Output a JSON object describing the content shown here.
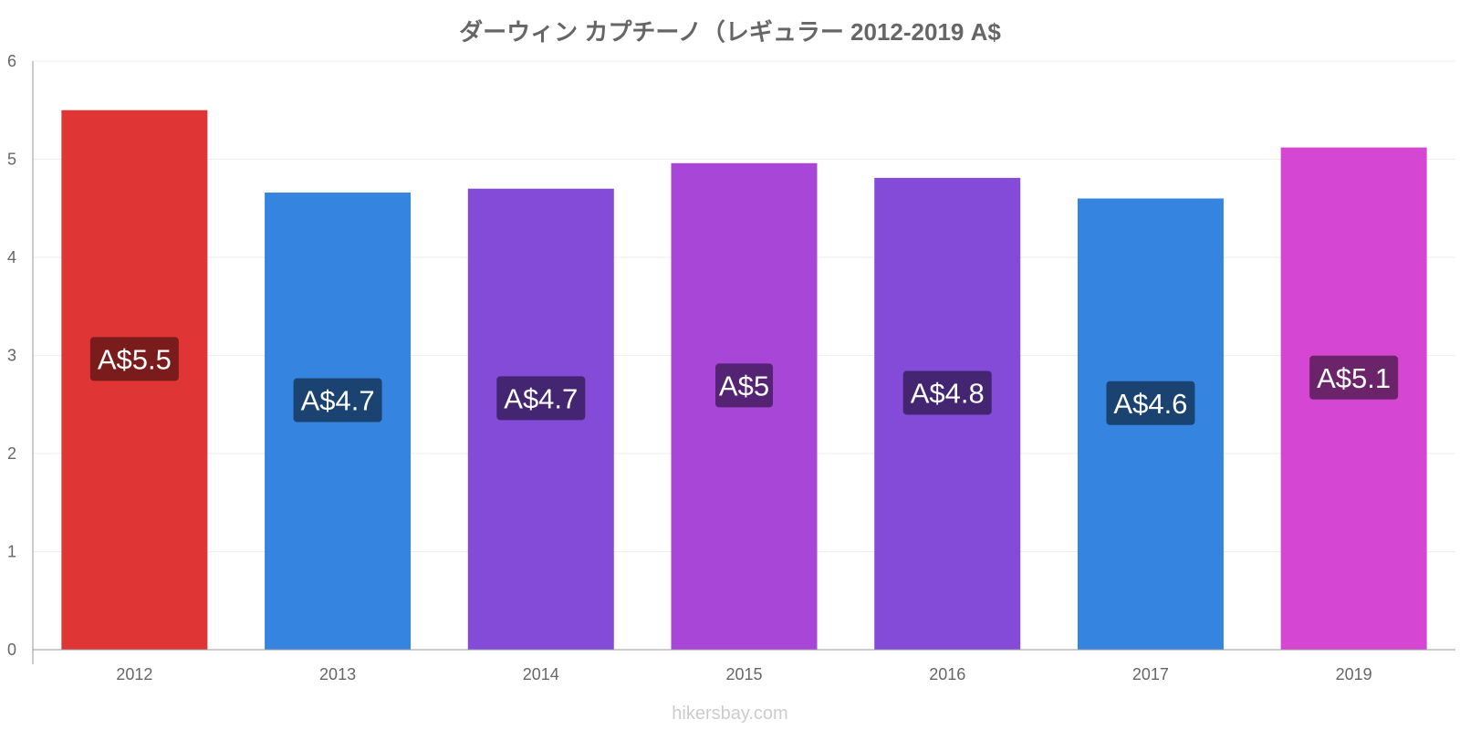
{
  "chart_data": {
    "type": "bar",
    "title": "ダーウィン カプチーノ（レギュラー 2012-2019 A$",
    "categories": [
      "2012",
      "2013",
      "2014",
      "2015",
      "2016",
      "2017",
      "2019"
    ],
    "values": [
      5.5,
      4.66,
      4.7,
      4.96,
      4.81,
      4.6,
      5.12
    ],
    "labels": [
      "A$5.5",
      "A$4.7",
      "A$4.7",
      "A$5",
      "A$4.8",
      "A$4.6",
      "A$5.1"
    ],
    "colors": [
      "#e03535",
      "#3584e0",
      "#844ad8",
      "#a846d8",
      "#844ad8",
      "#3584e0",
      "#d546d3"
    ],
    "label_colors": [
      "#7a1c1c",
      "#1b4371",
      "#432572",
      "#552373",
      "#432572",
      "#1b4371",
      "#6b2369"
    ],
    "ylim": [
      0,
      6
    ],
    "yticks": [
      0,
      1,
      2,
      3,
      4,
      5,
      6
    ],
    "xlabel": "",
    "ylabel": "",
    "grid": true
  },
  "watermark": "hikersbay.com"
}
